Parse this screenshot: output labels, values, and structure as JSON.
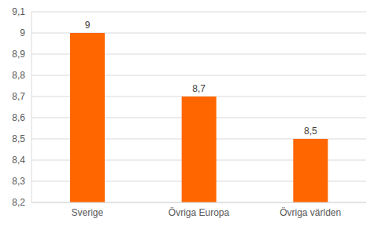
{
  "chart_data": {
    "type": "bar",
    "categories": [
      "Sverige",
      "Övriga Europa",
      "Övriga världen"
    ],
    "values": [
      9,
      8.7,
      8.5
    ],
    "value_labels": [
      "9",
      "8,7",
      "8,5"
    ],
    "color": "#ff6600",
    "ylim": [
      8.2,
      9.1
    ],
    "yticks": [
      {
        "value": 8.2,
        "label": "8,2"
      },
      {
        "value": 8.3,
        "label": "8,3"
      },
      {
        "value": 8.4,
        "label": "8,4"
      },
      {
        "value": 8.5,
        "label": "8,5"
      },
      {
        "value": 8.6,
        "label": "8,6"
      },
      {
        "value": 8.7,
        "label": "8,7"
      },
      {
        "value": 8.8,
        "label": "8,8"
      },
      {
        "value": 8.9,
        "label": "8,9"
      },
      {
        "value": 9,
        "label": "9"
      },
      {
        "value": 9.1,
        "label": "9,1"
      }
    ],
    "grid": true,
    "data_labels": true
  }
}
